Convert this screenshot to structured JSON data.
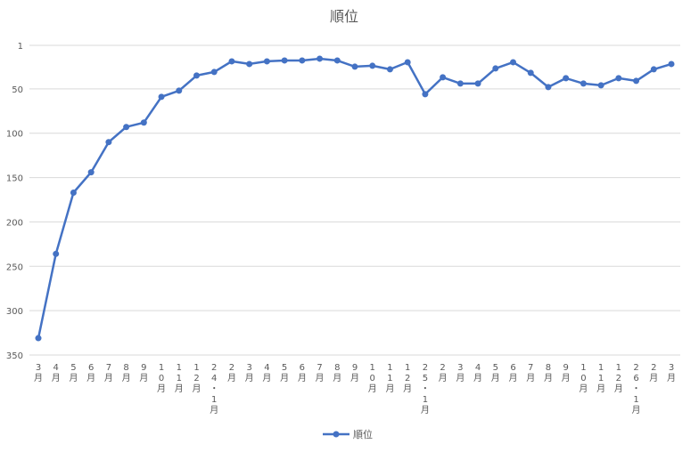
{
  "chart_data": {
    "type": "line",
    "title": "順位",
    "xlabel": "",
    "ylabel": "",
    "y_reversed": true,
    "ylim": [
      1,
      350
    ],
    "yticks": [
      1,
      50,
      100,
      150,
      200,
      250,
      300,
      350
    ],
    "grid": true,
    "legend_position": "bottom",
    "categories": [
      "3月",
      "4月",
      "5月",
      "6月",
      "7月",
      "8月",
      "9月",
      "10月",
      "11月",
      "12月",
      "24・1月",
      "2月",
      "3月",
      "4月",
      "5月",
      "6月",
      "7月",
      "8月",
      "9月",
      "10月",
      "11月",
      "12月",
      "25・1月",
      "2月",
      "3月",
      "4月",
      "5月",
      "6月",
      "7月",
      "8月",
      "9月",
      "10月",
      "11月",
      "12月",
      "26・1月",
      "2月",
      "3月"
    ],
    "series": [
      {
        "name": "順位",
        "color": "#4472c4",
        "values": [
          331,
          236,
          167,
          144,
          110,
          93,
          88,
          59,
          52,
          35,
          31,
          19,
          22,
          19,
          18,
          18,
          16,
          18,
          25,
          24,
          28,
          20,
          56,
          37,
          44,
          44,
          27,
          20,
          32,
          48,
          38,
          44,
          46,
          38,
          41,
          28,
          22
        ]
      }
    ]
  }
}
